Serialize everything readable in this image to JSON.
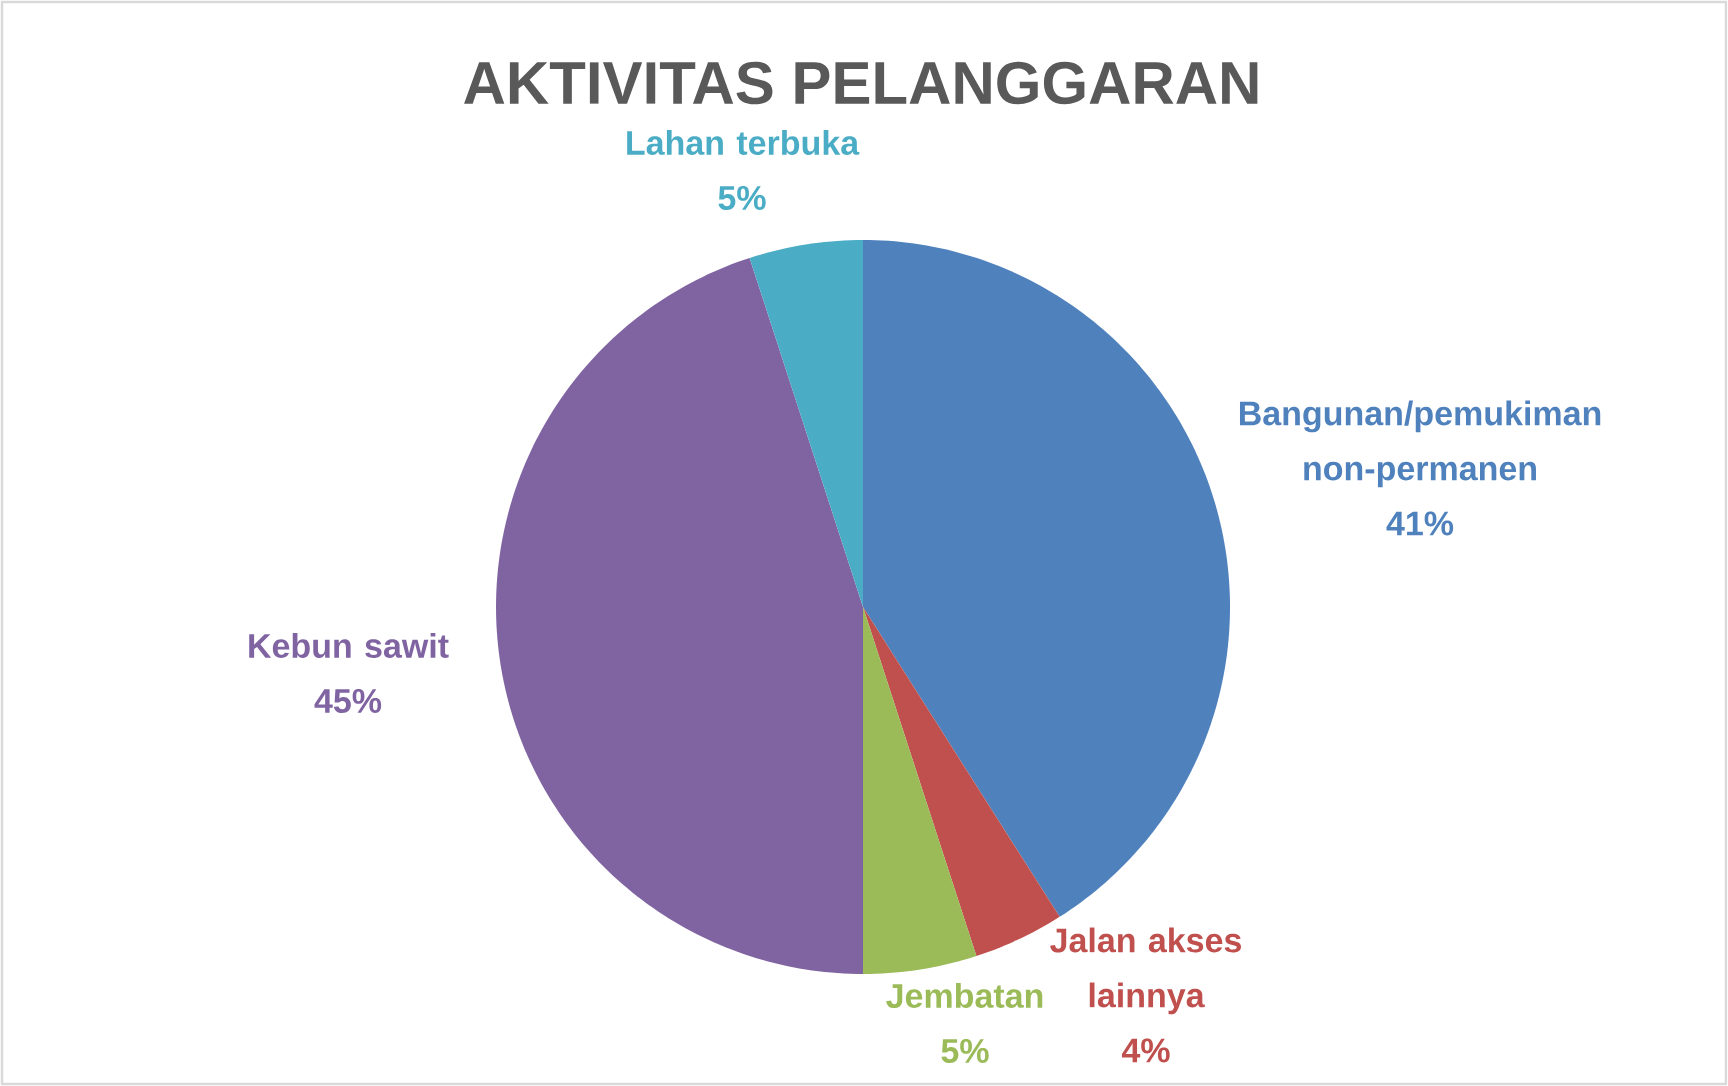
{
  "chart_data": {
    "type": "pie",
    "title": "AKTIVITAS PELANGGARAN",
    "categories": [
      "Bangunan/pemukiman non-permanen",
      "Jalan akses lainnya",
      "Jembatan",
      "Kebun sawit",
      "Lahan terbuka"
    ],
    "values": [
      41,
      4,
      5,
      45,
      5
    ],
    "value_labels": [
      "41%",
      "4%",
      "5%",
      "45%",
      "5%"
    ],
    "colors": [
      "#4f81bd",
      "#c0504d",
      "#9bbb59",
      "#8064a2",
      "#4bacc6"
    ]
  }
}
